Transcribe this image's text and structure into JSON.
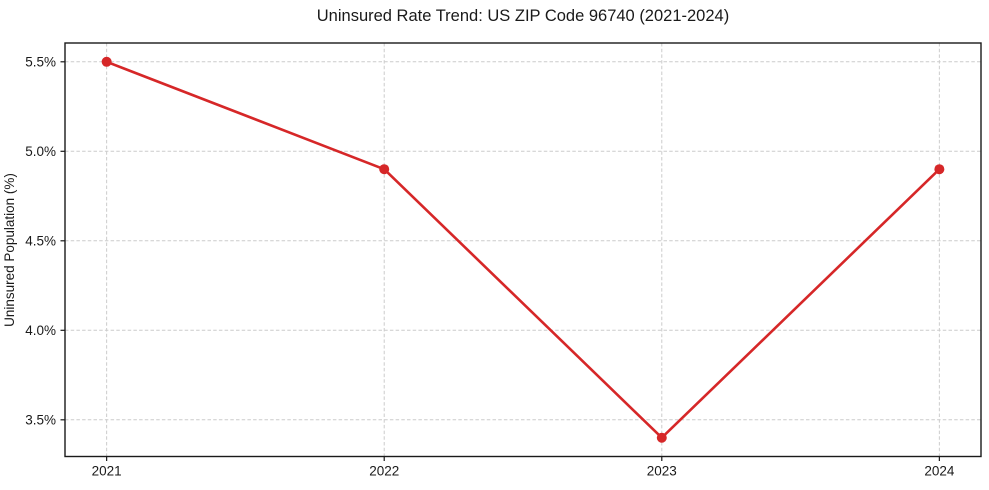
{
  "chart_data": {
    "type": "line",
    "title": "Uninsured Rate Trend: US ZIP Code 96740 (2021-2024)",
    "xlabel": "",
    "ylabel": "Uninsured Population (%)",
    "x": [
      2021,
      2022,
      2023,
      2024
    ],
    "series": [
      {
        "name": "uninsured-rate",
        "values": [
          5.5,
          4.9,
          3.4,
          4.9
        ]
      }
    ],
    "xticks": {
      "values": [
        2021,
        2022,
        2023,
        2024
      ],
      "labels": [
        "2021",
        "2022",
        "2023",
        "2024"
      ]
    },
    "yticks": {
      "values": [
        3.5,
        4.0,
        4.5,
        5.0,
        5.5
      ],
      "labels": [
        "3.5%",
        "4.0%",
        "4.5%",
        "5.0%",
        "5.5%"
      ]
    },
    "xlim": [
      2020.85,
      2024.15
    ],
    "ylim": [
      3.295,
      5.605
    ],
    "grid": true,
    "grid_style": "dashed",
    "legend": "none",
    "colors": {
      "line": "#d62728",
      "marker": "#d62728",
      "grid": "#cccccc",
      "spine": "#1a1a1a",
      "text": "#1a1a1a",
      "background": "#ffffff"
    },
    "marker_radius": 5,
    "line_width": 2.6
  }
}
